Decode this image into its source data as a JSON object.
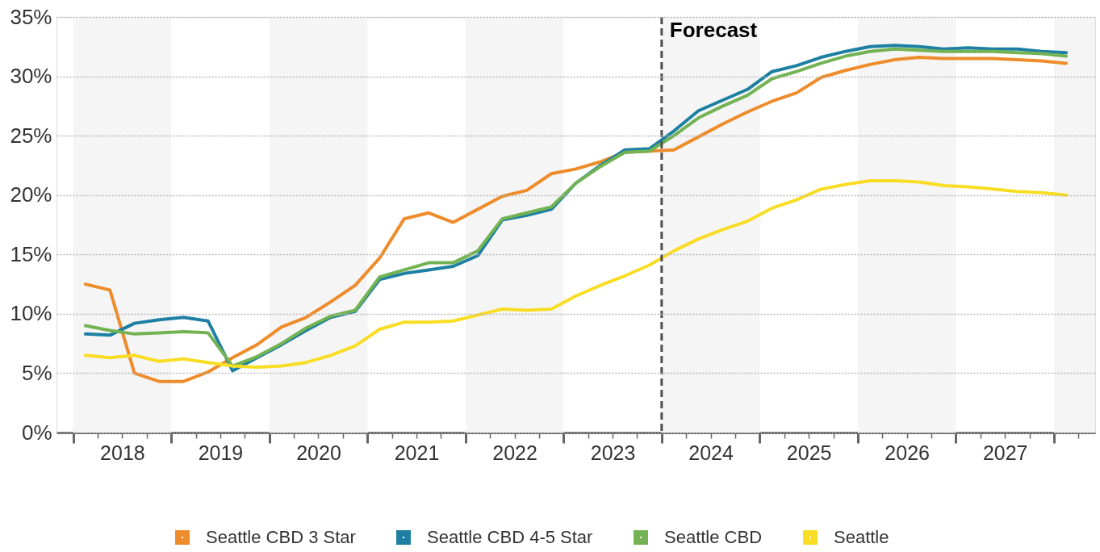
{
  "chart_data": {
    "type": "line",
    "x": [
      2018.125,
      2018.375,
      2018.625,
      2018.875,
      2019.125,
      2019.375,
      2019.625,
      2019.875,
      2020.125,
      2020.375,
      2020.625,
      2020.875,
      2021.125,
      2021.375,
      2021.625,
      2021.875,
      2022.125,
      2022.375,
      2022.625,
      2022.875,
      2023.125,
      2023.375,
      2023.625,
      2023.875,
      2024.125,
      2024.375,
      2024.625,
      2024.875,
      2025.125,
      2025.375,
      2025.625,
      2025.875,
      2026.125,
      2026.375,
      2026.625,
      2026.875,
      2027.125,
      2027.375,
      2027.625,
      2027.875,
      2028.125
    ],
    "series": [
      {
        "name": "Seattle CBD 3 Star",
        "color": "#ee8c2c",
        "values": [
          12.5,
          12.0,
          5.0,
          4.3,
          4.3,
          5.1,
          6.3,
          7.4,
          8.9,
          9.7,
          11.0,
          12.4,
          14.7,
          18.0,
          18.5,
          17.7,
          18.8,
          19.9,
          20.4,
          21.8,
          22.2,
          22.8,
          23.6,
          23.7,
          23.8,
          24.9,
          26.0,
          27.0,
          27.9,
          28.6,
          29.9,
          30.5,
          31.0,
          31.4,
          31.6,
          31.5,
          31.5,
          31.5,
          31.4,
          31.3,
          31.1
        ]
      },
      {
        "name": "Seattle CBD 4-5 Star",
        "color": "#1d80a2",
        "values": [
          8.3,
          8.2,
          9.2,
          9.5,
          9.7,
          9.4,
          5.2,
          6.3,
          7.4,
          8.6,
          9.7,
          10.2,
          12.9,
          13.4,
          13.7,
          14.0,
          14.9,
          17.9,
          18.3,
          18.8,
          21.0,
          22.5,
          23.8,
          23.9,
          25.4,
          27.1,
          28.0,
          28.9,
          30.4,
          30.9,
          31.6,
          32.1,
          32.5,
          32.6,
          32.5,
          32.3,
          32.4,
          32.3,
          32.3,
          32.1,
          32.0
        ]
      },
      {
        "name": "Seattle CBD",
        "color": "#73b354",
        "values": [
          9.0,
          8.6,
          8.3,
          8.4,
          8.5,
          8.4,
          5.6,
          6.4,
          7.5,
          8.8,
          9.8,
          10.3,
          13.1,
          13.7,
          14.3,
          14.3,
          15.3,
          18.0,
          18.5,
          19.0,
          21.0,
          22.4,
          23.6,
          23.7,
          25.0,
          26.5,
          27.5,
          28.4,
          29.8,
          30.4,
          31.1,
          31.7,
          32.1,
          32.3,
          32.2,
          32.1,
          32.1,
          32.1,
          32.0,
          31.9,
          31.7
        ]
      },
      {
        "name": "Seattle",
        "color": "#f9dd24",
        "values": [
          6.5,
          6.3,
          6.5,
          6.0,
          6.2,
          5.9,
          5.6,
          5.5,
          5.6,
          5.9,
          6.5,
          7.3,
          8.7,
          9.3,
          9.3,
          9.4,
          9.9,
          10.4,
          10.3,
          10.4,
          11.5,
          12.4,
          13.2,
          14.1,
          15.3,
          16.3,
          17.1,
          17.8,
          18.9,
          19.6,
          20.5,
          20.9,
          21.2,
          21.2,
          21.1,
          20.8,
          20.7,
          20.5,
          20.3,
          20.2,
          20.0
        ]
      }
    ],
    "xlim": [
      2017.83,
      2028.42
    ],
    "xticks": [
      {
        "value": 2018,
        "label": null
      },
      {
        "value": 2018.25,
        "label": null
      },
      {
        "value": 2018.5,
        "label": "2018"
      },
      {
        "value": 2018.75,
        "label": null
      },
      {
        "value": 2019,
        "label": null
      },
      {
        "value": 2019.25,
        "label": null
      },
      {
        "value": 2019.5,
        "label": "2019"
      },
      {
        "value": 2019.75,
        "label": null
      },
      {
        "value": 2020,
        "label": null
      },
      {
        "value": 2020.25,
        "label": null
      },
      {
        "value": 2020.5,
        "label": "2020"
      },
      {
        "value": 2020.75,
        "label": null
      },
      {
        "value": 2021,
        "label": null
      },
      {
        "value": 2021.25,
        "label": null
      },
      {
        "value": 2021.5,
        "label": "2021"
      },
      {
        "value": 2021.75,
        "label": null
      },
      {
        "value": 2022,
        "label": null
      },
      {
        "value": 2022.25,
        "label": null
      },
      {
        "value": 2022.5,
        "label": "2022"
      },
      {
        "value": 2022.75,
        "label": null
      },
      {
        "value": 2023,
        "label": null
      },
      {
        "value": 2023.25,
        "label": null
      },
      {
        "value": 2023.5,
        "label": "2023"
      },
      {
        "value": 2023.75,
        "label": null
      },
      {
        "value": 2024,
        "label": null
      },
      {
        "value": 2024.25,
        "label": null
      },
      {
        "value": 2024.5,
        "label": "2024"
      },
      {
        "value": 2024.75,
        "label": null
      },
      {
        "value": 2025,
        "label": null
      },
      {
        "value": 2025.25,
        "label": null
      },
      {
        "value": 2025.5,
        "label": "2025"
      },
      {
        "value": 2025.75,
        "label": null
      },
      {
        "value": 2026,
        "label": null
      },
      {
        "value": 2026.25,
        "label": null
      },
      {
        "value": 2026.5,
        "label": "2026"
      },
      {
        "value": 2026.75,
        "label": null
      },
      {
        "value": 2027,
        "label": null
      },
      {
        "value": 2027.25,
        "label": null
      },
      {
        "value": 2027.5,
        "label": "2027"
      },
      {
        "value": 2027.75,
        "label": null
      },
      {
        "value": 2028,
        "label": null
      },
      {
        "value": 2028.25,
        "label": null
      }
    ],
    "ylim": [
      0,
      35
    ],
    "yticks": [
      {
        "value": 0,
        "label": "0%"
      },
      {
        "value": 5,
        "label": "5%"
      },
      {
        "value": 10,
        "label": "10%"
      },
      {
        "value": 15,
        "label": "15%"
      },
      {
        "value": 20,
        "label": "20%"
      },
      {
        "value": 25,
        "label": "25%"
      },
      {
        "value": 30,
        "label": "30%"
      },
      {
        "value": 35,
        "label": "35%"
      }
    ],
    "bands": [
      {
        "axis": "x",
        "from": 2018,
        "to": 2019,
        "color": "#f5f5f5"
      },
      {
        "axis": "x",
        "from": 2020,
        "to": 2021,
        "color": "#f5f5f5"
      },
      {
        "axis": "x",
        "from": 2022,
        "to": 2023,
        "color": "#f5f5f5"
      },
      {
        "axis": "x",
        "from": 2024,
        "to": 2025,
        "color": "#f5f5f5"
      },
      {
        "axis": "x",
        "from": 2026,
        "to": 2027,
        "color": "#f5f5f5"
      },
      {
        "axis": "x",
        "from": 2028,
        "to": 2028.42,
        "color": "#f5f5f5"
      }
    ],
    "ref_lines": [
      {
        "axis": "x",
        "value": 2024,
        "label": "Forecast",
        "color": "#505050",
        "line_style": "dashed"
      }
    ],
    "grid": "y",
    "legend": "bottom"
  }
}
